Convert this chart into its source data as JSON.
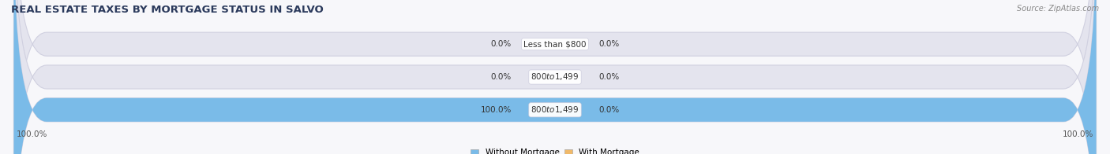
{
  "title": "REAL ESTATE TAXES BY MORTGAGE STATUS IN SALVO",
  "source": "Source: ZipAtlas.com",
  "bars": [
    {
      "label": "Less than $800",
      "without_mortgage": 0.0,
      "with_mortgage": 0.0
    },
    {
      "label": "$800 to $1,499",
      "without_mortgage": 0.0,
      "with_mortgage": 0.0
    },
    {
      "label": "$800 to $1,499",
      "without_mortgage": 100.0,
      "with_mortgage": 0.0
    }
  ],
  "color_without": "#7ABBE8",
  "color_with": "#F0B96A",
  "color_bar_bg": "#E4E4EE",
  "figsize": [
    14.06,
    1.96
  ],
  "dpi": 100,
  "legend_without": "Without Mortgage",
  "legend_with": "With Mortgage",
  "bottom_left_label": "100.0%",
  "bottom_right_label": "100.0%",
  "title_fontsize": 9.5,
  "label_fontsize": 7.5,
  "tick_fontsize": 7.5,
  "source_fontsize": 7,
  "bg_color": "#F7F7FA"
}
